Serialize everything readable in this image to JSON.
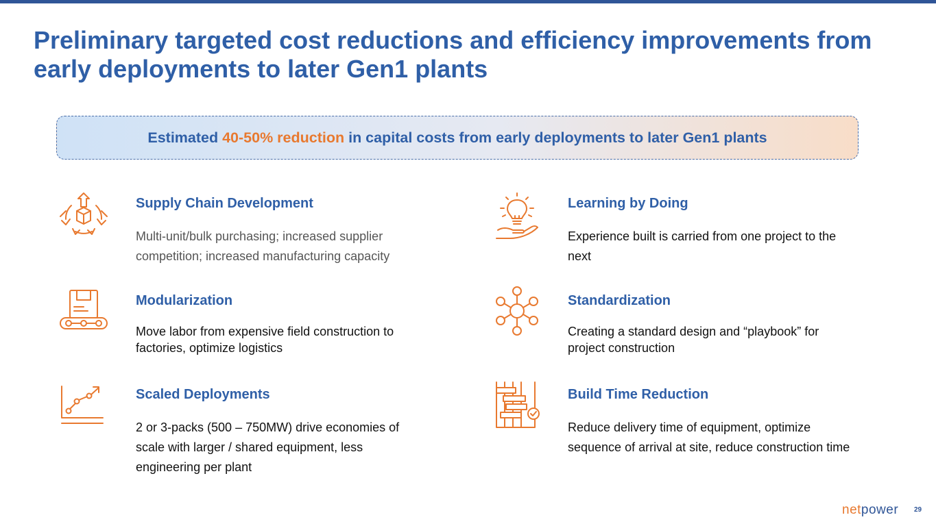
{
  "title": "Preliminary targeted cost reductions and efficiency improvements from early deployments to later Gen1 plants",
  "banner": {
    "prefix": "Estimated ",
    "highlight": "40-50% reduction",
    "suffix": " in capital costs from early deployments to later Gen1 plants"
  },
  "items": [
    {
      "icon": "supply-chain-icon",
      "title": "Supply Chain Development",
      "desc": "Multi-unit/bulk purchasing; increased supplier competition; increased manufacturing capacity"
    },
    {
      "icon": "lightbulb-hand-icon",
      "title": "Learning by Doing",
      "desc": "Experience built is carried from one project to the next"
    },
    {
      "icon": "conveyor-box-icon",
      "title": "Modularization",
      "desc": "Move labor from expensive field construction to factories, optimize logistics"
    },
    {
      "icon": "network-nodes-icon",
      "title": "Standardization",
      "desc": "Creating a standard design and “playbook” for project construction"
    },
    {
      "icon": "growth-chart-icon",
      "title": "Scaled Deployments",
      "desc": "2 or 3-packs (500 – 750MW) drive economies of scale with larger / shared equipment, less engineering per plant"
    },
    {
      "icon": "gantt-schedule-icon",
      "title": "Build Time Reduction",
      "desc": "Reduce delivery time of equipment, optimize sequence of arrival at site, reduce construction time"
    }
  ],
  "logo": {
    "net": "net",
    "power": "power"
  },
  "page_number": "29",
  "colors": {
    "primary_blue": "#2f5fa7",
    "accent_orange": "#e8792f",
    "dark_blue": "#2f5597"
  }
}
